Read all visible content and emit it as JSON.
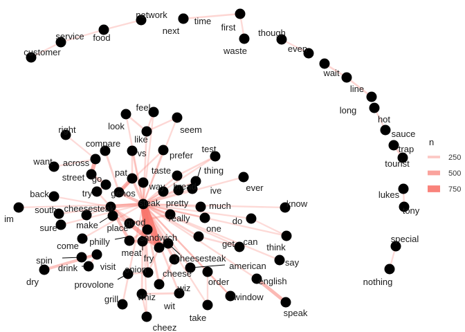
{
  "chart_data": {
    "type": "network",
    "edge_color": "#f8766d",
    "node_color": "#000000",
    "legend": {
      "title": "n",
      "placement": "right",
      "entries": [
        {
          "label": "250",
          "value": 250
        },
        {
          "label": "500",
          "value": 500
        },
        {
          "label": "750",
          "value": 750
        }
      ]
    },
    "nodes": [
      {
        "id": "network",
        "label": "network"
      },
      {
        "id": "time",
        "label": "time"
      },
      {
        "id": "next",
        "label": "next"
      },
      {
        "id": "first",
        "label": "first"
      },
      {
        "id": "waste",
        "label": "waste"
      },
      {
        "id": "though",
        "label": "though"
      },
      {
        "id": "even",
        "label": "even"
      },
      {
        "id": "wait",
        "label": "wait"
      },
      {
        "id": "line",
        "label": "line"
      },
      {
        "id": "long",
        "label": "long"
      },
      {
        "id": "hot",
        "label": "hot"
      },
      {
        "id": "sauce",
        "label": "sauce"
      },
      {
        "id": "trap",
        "label": "trap"
      },
      {
        "id": "tourist",
        "label": "tourist"
      },
      {
        "id": "lukes",
        "label": "lukes"
      },
      {
        "id": "tony",
        "label": "tony"
      },
      {
        "id": "special",
        "label": "special"
      },
      {
        "id": "nothing",
        "label": "nothing"
      },
      {
        "id": "food",
        "label": "food"
      },
      {
        "id": "service",
        "label": "service"
      },
      {
        "id": "customer",
        "label": "customer"
      },
      {
        "id": "feel",
        "label": "feel"
      },
      {
        "id": "look",
        "label": "look"
      },
      {
        "id": "seem",
        "label": "seem"
      },
      {
        "id": "right",
        "label": "right"
      },
      {
        "id": "like",
        "label": "like"
      },
      {
        "id": "compare",
        "label": "compare"
      },
      {
        "id": "vs",
        "label": "vs"
      },
      {
        "id": "prefer",
        "label": "prefer"
      },
      {
        "id": "test",
        "label": "test"
      },
      {
        "id": "want",
        "label": "want"
      },
      {
        "id": "across",
        "label": "across"
      },
      {
        "id": "street",
        "label": "street"
      },
      {
        "id": "go",
        "label": "go"
      },
      {
        "id": "pat",
        "label": "pat"
      },
      {
        "id": "taste",
        "label": "taste"
      },
      {
        "id": "thing",
        "label": "thing"
      },
      {
        "id": "ever",
        "label": "ever"
      },
      {
        "id": "try",
        "label": "try"
      },
      {
        "id": "genos",
        "label": "genos"
      },
      {
        "id": "way",
        "label": "way"
      },
      {
        "id": "bread",
        "label": "bread"
      },
      {
        "id": "ive",
        "label": "ive"
      },
      {
        "id": "back",
        "label": "back"
      },
      {
        "id": "cheesesteak",
        "label": "cheesesteak"
      },
      {
        "id": "steak",
        "label": "steak"
      },
      {
        "id": "pretty",
        "label": "pretty"
      },
      {
        "id": "much",
        "label": "much"
      },
      {
        "id": "know",
        "label": "know"
      },
      {
        "id": "im",
        "label": "im"
      },
      {
        "id": "south",
        "label": "south"
      },
      {
        "id": "make",
        "label": "make"
      },
      {
        "id": "good",
        "label": "good"
      },
      {
        "id": "really",
        "label": "really"
      },
      {
        "id": "one",
        "label": "one"
      },
      {
        "id": "do",
        "label": "do"
      },
      {
        "id": "sure",
        "label": "sure"
      },
      {
        "id": "place",
        "label": "place"
      },
      {
        "id": "sandwich",
        "label": "sandwich"
      },
      {
        "id": "get",
        "label": "get"
      },
      {
        "id": "can",
        "label": "can"
      },
      {
        "id": "think",
        "label": "think"
      },
      {
        "id": "come",
        "label": "come"
      },
      {
        "id": "philly",
        "label": "philly"
      },
      {
        "id": "meat",
        "label": "meat"
      },
      {
        "id": "fry",
        "label": "fry"
      },
      {
        "id": "cheesesteak2",
        "label": "cheesesteak"
      },
      {
        "id": "say",
        "label": "say"
      },
      {
        "id": "american",
        "label": "american"
      },
      {
        "id": "spin",
        "label": "spin"
      },
      {
        "id": "drink",
        "label": "drink"
      },
      {
        "id": "visit",
        "label": "visit"
      },
      {
        "id": "onion",
        "label": "onion"
      },
      {
        "id": "cheese",
        "label": "cheese"
      },
      {
        "id": "dry",
        "label": "dry"
      },
      {
        "id": "provolone",
        "label": "provolone"
      },
      {
        "id": "order",
        "label": "order"
      },
      {
        "id": "english",
        "label": "english"
      },
      {
        "id": "wiz",
        "label": "wiz"
      },
      {
        "id": "window",
        "label": "window"
      },
      {
        "id": "grill",
        "label": "grill"
      },
      {
        "id": "whiz",
        "label": "whiz"
      },
      {
        "id": "wit",
        "label": "wit"
      },
      {
        "id": "take",
        "label": "take"
      },
      {
        "id": "speak",
        "label": "speak"
      },
      {
        "id": "cheez",
        "label": "cheez"
      }
    ],
    "edges": [
      {
        "from": "network",
        "to": "food",
        "n": 130
      },
      {
        "from": "time",
        "to": "next",
        "n": 130
      },
      {
        "from": "time",
        "to": "first",
        "n": 150
      },
      {
        "from": "first",
        "to": "waste",
        "n": 130
      },
      {
        "from": "food",
        "to": "service",
        "n": 120
      },
      {
        "from": "service",
        "to": "customer",
        "n": 130
      },
      {
        "from": "though",
        "to": "even",
        "n": 120
      },
      {
        "from": "wait",
        "to": "line",
        "n": 160
      },
      {
        "from": "line",
        "to": "long",
        "n": 160
      },
      {
        "from": "hot",
        "to": "sauce",
        "n": 130
      },
      {
        "from": "trap",
        "to": "tourist",
        "n": 180
      },
      {
        "from": "lukes",
        "to": "tony",
        "n": 130
      },
      {
        "from": "special",
        "to": "nothing",
        "n": 120
      },
      {
        "from": "cheesesteak",
        "to": "steak",
        "n": 350
      },
      {
        "from": "steak",
        "to": "sandwich",
        "n": 700
      },
      {
        "from": "steak",
        "to": "fry",
        "n": 800
      },
      {
        "from": "good",
        "to": "fry",
        "n": 450
      },
      {
        "from": "cheesesteak",
        "to": "good",
        "n": 300
      },
      {
        "from": "cheesesteak",
        "to": "place",
        "n": 250
      },
      {
        "from": "cheesesteak",
        "to": "try",
        "n": 150
      },
      {
        "from": "cheesesteak",
        "to": "make",
        "n": 130
      },
      {
        "from": "cheesesteak",
        "to": "back",
        "n": 120
      },
      {
        "from": "cheesesteak",
        "to": "south",
        "n": 150
      },
      {
        "from": "cheesesteak",
        "to": "philly",
        "n": 300
      },
      {
        "from": "cheesesteak",
        "to": "sandwich",
        "n": 200
      },
      {
        "from": "philly",
        "to": "sandwich",
        "n": 200
      },
      {
        "from": "philly",
        "to": "cheesesteak2",
        "n": 260
      },
      {
        "from": "steak",
        "to": "like",
        "n": 150
      },
      {
        "from": "steak",
        "to": "pretty",
        "n": 140
      },
      {
        "from": "steak",
        "to": "really",
        "n": 150
      },
      {
        "from": "steak",
        "to": "get",
        "n": 180
      },
      {
        "from": "steak",
        "to": "one",
        "n": 150
      },
      {
        "from": "steak",
        "to": "much",
        "n": 130
      },
      {
        "from": "steak",
        "to": "do",
        "n": 130
      },
      {
        "from": "steak",
        "to": "ive",
        "n": 130
      },
      {
        "from": "steak",
        "to": "bread",
        "n": 150
      },
      {
        "from": "steak",
        "to": "way",
        "n": 130
      },
      {
        "from": "steak",
        "to": "taste",
        "n": 150
      },
      {
        "from": "steak",
        "to": "pat",
        "n": 250
      },
      {
        "from": "steak",
        "to": "genos",
        "n": 300
      },
      {
        "from": "steak",
        "to": "vs",
        "n": 150
      },
      {
        "from": "steak",
        "to": "prefer",
        "n": 140
      },
      {
        "from": "steak",
        "to": "feel",
        "n": 130
      },
      {
        "from": "steak",
        "to": "look",
        "n": 130
      },
      {
        "from": "steak",
        "to": "seem",
        "n": 130
      },
      {
        "from": "steak",
        "to": "test",
        "n": 130
      },
      {
        "from": "steak",
        "to": "thing",
        "n": 120
      },
      {
        "from": "steak",
        "to": "ever",
        "n": 130
      },
      {
        "from": "steak",
        "to": "meat",
        "n": 150
      },
      {
        "from": "steak",
        "to": "come",
        "n": 130
      },
      {
        "from": "steak",
        "to": "sure",
        "n": 130
      },
      {
        "from": "steak",
        "to": "im",
        "n": 130
      },
      {
        "from": "steak",
        "to": "cheese",
        "n": 250
      },
      {
        "from": "steak",
        "to": "onion",
        "n": 220
      },
      {
        "from": "steak",
        "to": "american",
        "n": 150
      },
      {
        "from": "steak",
        "to": "order",
        "n": 150
      },
      {
        "from": "steak",
        "to": "window",
        "n": 130
      },
      {
        "from": "steak",
        "to": "english",
        "n": 130
      },
      {
        "from": "steak",
        "to": "can",
        "n": 130
      },
      {
        "from": "steak",
        "to": "think",
        "n": 130
      },
      {
        "from": "steak",
        "to": "say",
        "n": 130
      },
      {
        "from": "steak",
        "to": "know",
        "n": 130
      },
      {
        "from": "steak",
        "to": "wiz",
        "n": 200
      },
      {
        "from": "steak",
        "to": "whiz",
        "n": 180
      },
      {
        "from": "steak",
        "to": "wit",
        "n": 170
      },
      {
        "from": "steak",
        "to": "grill",
        "n": 150
      },
      {
        "from": "steak",
        "to": "take",
        "n": 130
      },
      {
        "from": "steak",
        "to": "cheez",
        "n": 130
      },
      {
        "from": "street",
        "to": "across",
        "n": 420
      },
      {
        "from": "go",
        "to": "street",
        "n": 260
      },
      {
        "from": "across",
        "to": "want",
        "n": 120
      },
      {
        "from": "across",
        "to": "right",
        "n": 120
      },
      {
        "from": "compare",
        "to": "genos",
        "n": 180
      },
      {
        "from": "pat",
        "to": "genos",
        "n": 400
      },
      {
        "from": "go",
        "to": "try",
        "n": 200
      },
      {
        "from": "spin",
        "to": "drink",
        "n": 130
      },
      {
        "from": "drink",
        "to": "dry",
        "n": 280
      },
      {
        "from": "visit",
        "to": "drink",
        "n": 130
      },
      {
        "from": "provolone",
        "to": "onion",
        "n": 150
      },
      {
        "from": "english",
        "to": "speak",
        "n": 350
      },
      {
        "from": "window",
        "to": "order",
        "n": 150
      },
      {
        "from": "cheese",
        "to": "wiz",
        "n": 180
      },
      {
        "from": "whiz",
        "to": "wit",
        "n": 170
      },
      {
        "from": "cheez",
        "to": "whiz",
        "n": 150
      },
      {
        "from": "take",
        "to": "order",
        "n": 130
      },
      {
        "from": "get",
        "to": "can",
        "n": 140
      },
      {
        "from": "think",
        "to": "do",
        "n": 120
      },
      {
        "from": "good",
        "to": "really",
        "n": 200
      },
      {
        "from": "place",
        "to": "good",
        "n": 180
      },
      {
        "from": "fry",
        "to": "cheesesteak2",
        "n": 230
      },
      {
        "from": "fry",
        "to": "onion",
        "n": 160
      },
      {
        "from": "feel",
        "to": "like",
        "n": 140
      },
      {
        "from": "like",
        "to": "seem",
        "n": 140
      },
      {
        "from": "look",
        "to": "like",
        "n": 150
      },
      {
        "from": "vs",
        "to": "pat",
        "n": 150
      },
      {
        "from": "prefer",
        "to": "genos",
        "n": 140
      },
      {
        "from": "taste",
        "to": "test",
        "n": 150
      },
      {
        "from": "meat",
        "to": "sandwich",
        "n": 150
      }
    ]
  }
}
